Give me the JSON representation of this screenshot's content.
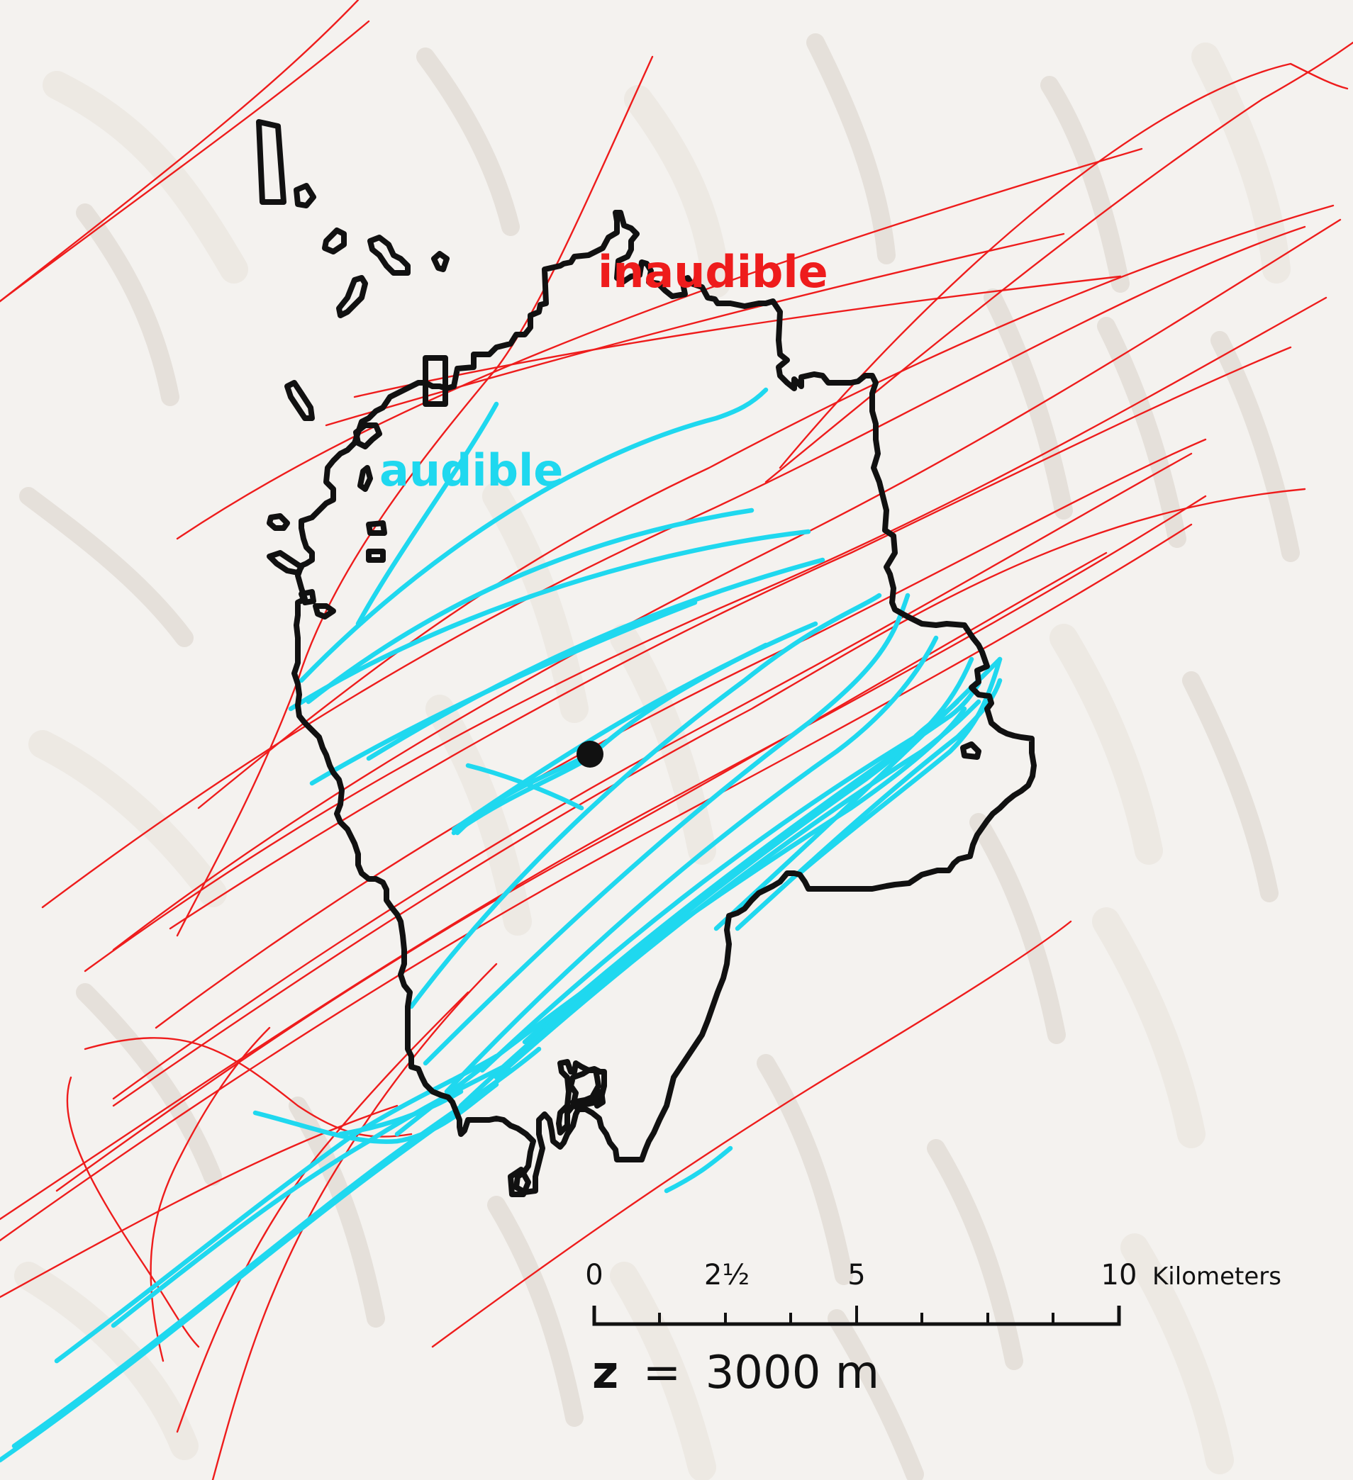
{
  "labels": {
    "inaudible": "inaudible",
    "audible": "audible"
  },
  "scale_bar": {
    "ticks": [
      "0",
      "2½",
      "5",
      "10"
    ],
    "unit": "Kilometers"
  },
  "altitude": {
    "variable": "z",
    "equals": "=",
    "value": "3000 m"
  },
  "colors": {
    "inaudible": "#ee1c1c",
    "audible": "#1fd8ef",
    "boundary": "#111111",
    "terrain": "#d9d2c8",
    "background": "#f4f2ef"
  }
}
